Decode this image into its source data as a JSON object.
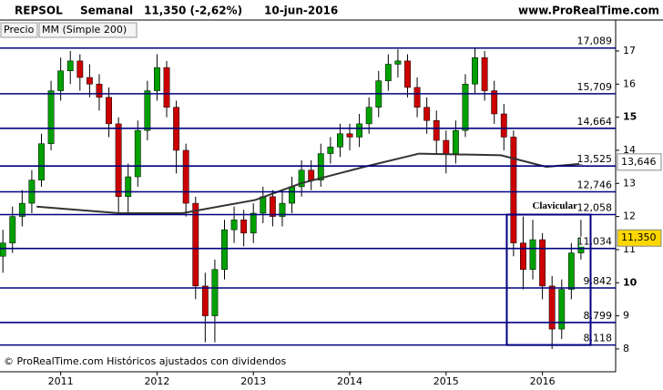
{
  "chart_data": {
    "type": "candlestick",
    "symbol": "REPSOL",
    "period": "Semanal",
    "last_change": "11,350 (-2,62%)",
    "date": "10-jun-2016",
    "site": "www.ProRealTime.com",
    "legend": [
      "Precio",
      "MM (Simple 200)"
    ],
    "footer": "© ProRealTime.com Históricos ajustados con dividendos",
    "xlim": [
      2010.37,
      2016.76
    ],
    "xticks": [
      2011,
      2012,
      2013,
      2014,
      2015,
      2016
    ],
    "ylim": [
      7.75,
      17.77
    ],
    "yticks": [
      8,
      9,
      10,
      11,
      12,
      13,
      14,
      15,
      16,
      17
    ],
    "major_yticks": [
      10,
      15
    ],
    "up_color": "#00a000",
    "down_color": "#cc0000",
    "x": [
      2010.4,
      2010.5,
      2010.6,
      2010.7,
      2010.8,
      2010.9,
      2011.0,
      2011.1,
      2011.2,
      2011.3,
      2011.4,
      2011.5,
      2011.6,
      2011.7,
      2011.8,
      2011.9,
      2012.0,
      2012.1,
      2012.2,
      2012.3,
      2012.4,
      2012.5,
      2012.6,
      2012.7,
      2012.8,
      2012.9,
      2013.0,
      2013.1,
      2013.2,
      2013.3,
      2013.4,
      2013.5,
      2013.6,
      2013.7,
      2013.8,
      2013.9,
      2014.0,
      2014.1,
      2014.2,
      2014.3,
      2014.4,
      2014.5,
      2014.6,
      2014.7,
      2014.8,
      2014.9,
      2015.0,
      2015.1,
      2015.2,
      2015.3,
      2015.4,
      2015.5,
      2015.6,
      2015.7,
      2015.8,
      2015.9,
      2016.0,
      2016.1,
      2016.2,
      2016.3,
      2016.4
    ],
    "open": [
      10.8,
      11.2,
      12.0,
      12.4,
      13.1,
      14.2,
      15.8,
      16.4,
      16.7,
      16.2,
      16.0,
      15.6,
      14.8,
      12.6,
      13.2,
      14.6,
      15.8,
      16.5,
      15.3,
      14.0,
      12.4,
      9.9,
      9.0,
      10.4,
      11.6,
      11.9,
      11.5,
      12.1,
      12.6,
      12.0,
      12.4,
      12.9,
      13.4,
      13.1,
      13.9,
      14.1,
      14.5,
      14.4,
      14.8,
      15.3,
      16.1,
      16.6,
      16.7,
      15.9,
      15.3,
      14.9,
      14.3,
      13.9,
      14.6,
      16.0,
      16.8,
      15.8,
      15.1,
      14.4,
      11.2,
      10.4,
      11.3,
      9.9,
      8.6,
      9.8,
      10.9
    ],
    "high": [
      11.6,
      12.3,
      12.8,
      13.4,
      14.5,
      16.1,
      16.8,
      17.0,
      16.9,
      16.6,
      16.3,
      15.9,
      15.0,
      13.6,
      14.9,
      16.1,
      16.9,
      16.7,
      15.5,
      14.2,
      12.6,
      10.3,
      10.7,
      11.9,
      12.3,
      12.2,
      12.4,
      12.9,
      12.8,
      12.8,
      13.2,
      13.7,
      13.7,
      14.2,
      14.4,
      14.8,
      14.8,
      15.1,
      15.6,
      16.4,
      16.9,
      17.05,
      16.9,
      16.2,
      15.6,
      15.2,
      14.6,
      14.9,
      16.3,
      17.1,
      17.0,
      16.1,
      15.4,
      14.6,
      12.0,
      11.9,
      11.5,
      10.2,
      10.1,
      11.2,
      11.9
    ],
    "low": [
      10.3,
      10.9,
      11.7,
      12.1,
      12.9,
      14.0,
      15.5,
      16.0,
      15.8,
      15.6,
      15.2,
      14.4,
      12.1,
      12.1,
      12.9,
      14.3,
      15.5,
      15.0,
      13.3,
      12.0,
      9.5,
      8.2,
      8.2,
      10.1,
      11.2,
      11.1,
      11.2,
      11.8,
      11.7,
      11.7,
      12.1,
      12.6,
      12.8,
      12.9,
      13.6,
      13.8,
      14.0,
      14.1,
      14.5,
      15.0,
      15.8,
      16.2,
      15.6,
      15.0,
      14.5,
      13.9,
      13.3,
      13.6,
      14.4,
      15.7,
      15.5,
      14.8,
      14.0,
      10.8,
      9.8,
      10.1,
      9.5,
      8.0,
      8.3,
      9.5,
      10.7
    ],
    "close": [
      11.2,
      12.0,
      12.4,
      13.1,
      14.2,
      15.8,
      16.4,
      16.7,
      16.2,
      16.0,
      15.6,
      14.8,
      12.6,
      13.2,
      14.6,
      15.8,
      16.5,
      15.3,
      14.0,
      12.4,
      9.9,
      9.0,
      10.4,
      11.6,
      11.9,
      11.5,
      12.1,
      12.6,
      12.0,
      12.4,
      12.9,
      13.4,
      13.1,
      13.9,
      14.1,
      14.5,
      14.4,
      14.8,
      15.3,
      16.1,
      16.6,
      16.7,
      15.9,
      15.3,
      14.9,
      14.3,
      13.9,
      14.6,
      16.0,
      16.8,
      15.8,
      15.1,
      14.4,
      11.2,
      10.4,
      11.3,
      9.9,
      8.6,
      9.8,
      10.9,
      11.35
    ],
    "ma": {
      "color": "#333333",
      "x": [
        2010.75,
        2011.6,
        2012.26,
        2013.02,
        2013.49,
        2014.15,
        2014.72,
        2015.57,
        2016.04,
        2016.42
      ],
      "values": [
        12.3,
        12.1,
        12.1,
        12.5,
        13.0,
        13.5,
        13.9,
        13.85,
        13.5,
        13.6
      ]
    },
    "levels": [
      {
        "value": 17.089,
        "label": "17,089"
      },
      {
        "value": 15.709,
        "label": "15,709"
      },
      {
        "value": 14.664,
        "label": "14,664"
      },
      {
        "value": 13.525,
        "label": "13,525"
      },
      {
        "value": 12.746,
        "label": "12,746"
      },
      {
        "value": 12.058,
        "label": "12,058"
      },
      {
        "value": 11.034,
        "label": "11,034"
      },
      {
        "value": 9.842,
        "label": "9,842"
      },
      {
        "value": 8.799,
        "label": "8,799"
      },
      {
        "value": 8.118,
        "label": "8,118"
      }
    ],
    "level_color": "#000080",
    "price_tag": {
      "value": 11.35,
      "label": "11,350"
    },
    "ma_tag": {
      "value": 13.646,
      "label": "13,646"
    },
    "box": {
      "label": "Clavicular",
      "x": [
        2015.63,
        2016.5
      ],
      "y": [
        8.118,
        12.058
      ]
    }
  }
}
